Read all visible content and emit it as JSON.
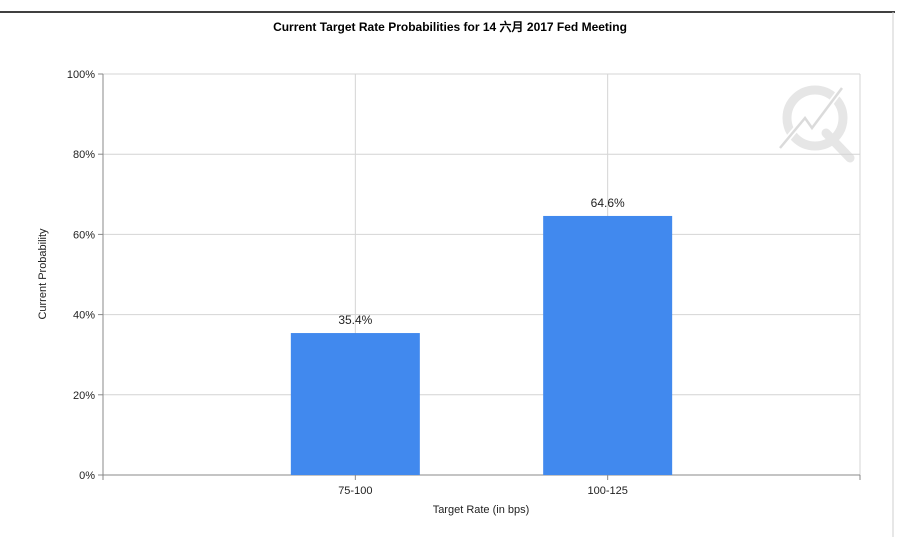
{
  "chart_data": {
    "type": "bar",
    "title": "Current Target Rate Probabilities for 14 六月 2017 Fed Meeting",
    "xlabel": "Target Rate (in bps)",
    "ylabel": "Current Probability",
    "categories": [
      "75-100",
      "100-125"
    ],
    "values": [
      35.4,
      64.6
    ],
    "data_labels": [
      "35.4%",
      "64.6%"
    ],
    "yticks": [
      "0%",
      "20%",
      "40%",
      "60%",
      "80%",
      "100%"
    ],
    "ylim": [
      0,
      100
    ],
    "grid": true,
    "legend": "none",
    "bar_color": "#4189ee",
    "grid_color": "#d4d4d4",
    "watermark_icon": "cme-fedwatch-logo-icon"
  }
}
